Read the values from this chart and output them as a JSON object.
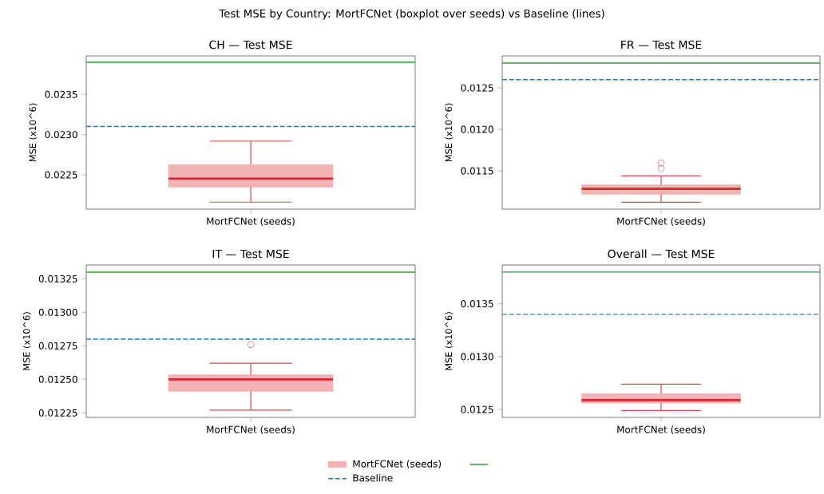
{
  "chart_data": [
    {
      "type": "box",
      "title": "CH — Test MSE",
      "ylabel": "MSE (x10^6)",
      "categories": [
        "MortFCNet (seeds)"
      ],
      "annotations": [
        "Test MSE by Country: MortFCNet (boxplot over seeds) vs Baseline (lines)"
      ],
      "series": [
        {
          "color": "#f1b3b4",
          "boxes": [
            {
              "low": 0.02216,
              "q1": 0.022347,
              "median": 0.022453,
              "q3": 0.022627,
              "high": 0.02292
            }
          ]
        }
      ],
      "ylim": [
        0.022073,
        0.02398
      ],
      "yticks": [
        {
          "value": 0.0225,
          "label": "0.0225"
        },
        {
          "value": 0.023,
          "label": "0.0230"
        },
        0.0235
      ],
      "ref_lines": [
        {
          "axis": "y",
          "value": 0.0239,
          "color": "#2ca02c",
          "line_style": "solid"
        },
        {
          "axis": "y",
          "value": 0.0231,
          "color": "#1f77b4",
          "line_style": "dashed"
        }
      ],
      "grid": false
    },
    {
      "type": "box",
      "title": "FR — Test MSE",
      "ylabel": "MSE (x10^6)",
      "categories": [
        "MortFCNet (seeds)"
      ],
      "series": [
        {
          "color": "#f1b3b4",
          "boxes": [
            {
              "low": 0.011123,
              "q1": 0.011216,
              "median": 0.011284,
              "q3": 0.011332,
              "high": 0.011439,
              "outliers": [
                0.011529,
                0.011594
              ]
            }
          ]
        }
      ],
      "ylim": [
        0.011039,
        0.012887
      ],
      "yticks": [
        0.0115,
        {
          "value": 0.012,
          "label": "0.0120"
        },
        0.0125
      ],
      "ref_lines": [
        {
          "axis": "y",
          "value": 0.0128,
          "color": "#2ca02c",
          "line_style": "solid"
        },
        {
          "axis": "y",
          "value": 0.0126,
          "color": "#1f77b4",
          "line_style": "dashed"
        }
      ],
      "grid": false
    },
    {
      "type": "box",
      "title": "IT — Test MSE",
      "ylabel": "MSE (x10^6)",
      "categories": [
        "MortFCNet (seeds)"
      ],
      "series": [
        {
          "name": "MortFCNet (seeds)",
          "color": "#f1b3b4",
          "boxes": [
            {
              "low": 0.01227,
              "q1": 0.01241,
              "median": 0.0125,
              "q3": 0.012534,
              "high": 0.01262,
              "outliers": [
                0.01276
              ]
            }
          ]
        }
      ],
      "ylim": [
        0.012216,
        0.013353
      ],
      "yticks": [
        0.01225,
        {
          "value": 0.0125,
          "label": "0.01250"
        },
        0.01275,
        {
          "value": 0.013,
          "label": "0.01300"
        },
        0.01325
      ],
      "ref_lines": [
        {
          "axis": "y",
          "value": 0.0133,
          "color": "#2ca02c",
          "line_style": "solid"
        },
        {
          "axis": "y",
          "value": 0.0128,
          "color": "#1f77b4",
          "line_style": "dashed",
          "label": "Baseline"
        }
      ],
      "grid": false,
      "legend": "bottom"
    },
    {
      "type": "box",
      "title": "Overall — Test MSE",
      "ylabel": "MSE (x10^6)",
      "categories": [
        "MortFCNet (seeds)"
      ],
      "series": [
        {
          "color": "#f1b3b4",
          "boxes": [
            {
              "low": 0.01249,
              "q1": 0.01256,
              "median": 0.012588,
              "q3": 0.01265,
              "high": 0.012739
            }
          ]
        }
      ],
      "ylim": [
        0.012425,
        0.013867
      ],
      "yticks": [
        0.0125,
        {
          "value": 0.013,
          "label": "0.0130"
        },
        0.0135
      ],
      "ref_lines": [
        {
          "axis": "y",
          "value": 0.0138,
          "color": "#2ca02c",
          "line_style": "solid"
        },
        {
          "axis": "y",
          "value": 0.0134,
          "color": "#1f77b4",
          "line_style": "dashed"
        }
      ],
      "grid": false
    }
  ]
}
